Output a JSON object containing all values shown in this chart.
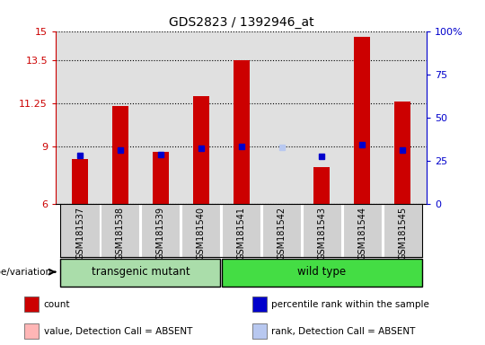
{
  "title": "GDS2823 / 1392946_at",
  "samples": [
    "GSM181537",
    "GSM181538",
    "GSM181539",
    "GSM181540",
    "GSM181541",
    "GSM181542",
    "GSM181543",
    "GSM181544",
    "GSM181545"
  ],
  "count_values": [
    8.3,
    11.1,
    8.7,
    11.6,
    13.5,
    6.0,
    7.9,
    14.7,
    11.3
  ],
  "percentile_values": [
    8.5,
    8.8,
    8.55,
    8.9,
    9.0,
    8.95,
    8.45,
    9.05,
    8.8
  ],
  "absent_value_indices": [
    5
  ],
  "absent_rank_indices": [
    5
  ],
  "ylim_left": [
    6,
    15
  ],
  "ylim_right": [
    0,
    100
  ],
  "yticks_left": [
    6,
    9,
    11.25,
    13.5,
    15
  ],
  "yticks_right": [
    0,
    25,
    50,
    75,
    100
  ],
  "ytick_labels_left": [
    "6",
    "9",
    "11.25",
    "13.5",
    "15"
  ],
  "ytick_labels_right": [
    "0",
    "25",
    "50",
    "75",
    "100%"
  ],
  "bar_bottom": 6.0,
  "count_color": "#cc0000",
  "absent_count_color": "#ffb6b6",
  "percentile_color": "#0000cc",
  "absent_percentile_color": "#b8c8f0",
  "group_labels": [
    "transgenic mutant",
    "wild type"
  ],
  "legend_items": [
    {
      "label": "count",
      "color": "#cc0000"
    },
    {
      "label": "percentile rank within the sample",
      "color": "#0000cc"
    },
    {
      "label": "value, Detection Call = ABSENT",
      "color": "#ffb6b6"
    },
    {
      "label": "rank, Detection Call = ABSENT",
      "color": "#b8c8f0"
    }
  ],
  "plot_bg_color": "#e0e0e0",
  "bar_width": 0.4,
  "percentile_marker_size": 5
}
